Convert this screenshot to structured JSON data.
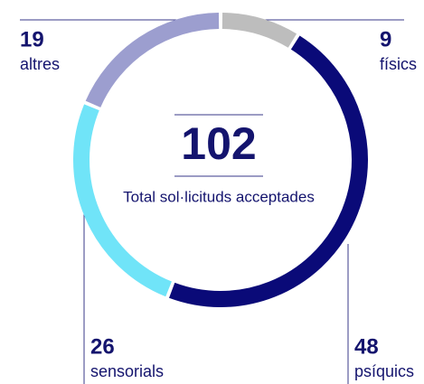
{
  "chart_data": {
    "type": "pie",
    "total": 102,
    "total_label": "Total sol·licituds acceptades",
    "categories": [
      "físics",
      "psíquics",
      "sensorials",
      "altres"
    ],
    "values": [
      9,
      48,
      26,
      19
    ],
    "colors": [
      "#bdbdbd",
      "#0a0a78",
      "#70e4f8",
      "#9c9ecf"
    ]
  }
}
